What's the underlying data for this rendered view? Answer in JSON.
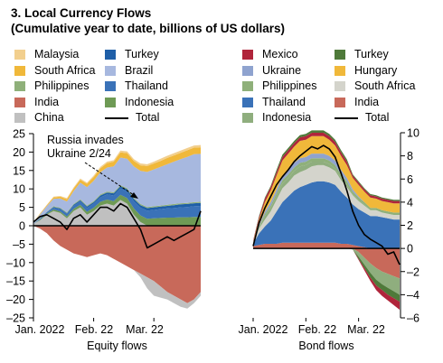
{
  "header": {
    "title": "3. Local Currency Flows",
    "subtitle": "(Cumulative year to date, billions of US dollars)"
  },
  "colors": {
    "malaysia": "#f2cf8e",
    "turkey_eq": "#1f5fa8",
    "south_africa": "#f0b83a",
    "brazil": "#a7b8df",
    "philippines": "#8fb07a",
    "thailand": "#3a72b8",
    "india": "#c8695a",
    "indonesia": "#6e9a55",
    "china": "#c0c0c0",
    "mexico": "#b0253b",
    "turkey_bond": "#4f7a3a",
    "ukraine": "#8fa3cf",
    "hungary": "#f0b83a",
    "bond_south_africa": "#d4d4cc",
    "bond_india": "#c8695a",
    "bond_indonesia": "#8fae7e",
    "total": "#000000"
  },
  "legends": {
    "equity": [
      {
        "label": "Malaysia",
        "color": "#f2cf8e"
      },
      {
        "label": "Turkey",
        "color": "#1f5fa8"
      },
      {
        "label": "South Africa",
        "color": "#f0b83a"
      },
      {
        "label": "Brazil",
        "color": "#a7b8df"
      },
      {
        "label": "Philippines",
        "color": "#8fb07a"
      },
      {
        "label": "Thailand",
        "color": "#3a72b8"
      },
      {
        "label": "India",
        "color": "#c8695a"
      },
      {
        "label": "Indonesia",
        "color": "#6e9a55"
      },
      {
        "label": "China",
        "color": "#c0c0c0"
      },
      {
        "label": "Total",
        "color": "#000000",
        "line": true
      }
    ],
    "bond": [
      {
        "label": "Mexico",
        "color": "#b0253b"
      },
      {
        "label": "Turkey",
        "color": "#4f7a3a"
      },
      {
        "label": "Ukraine",
        "color": "#8fa3cf"
      },
      {
        "label": "Hungary",
        "color": "#f0b83a"
      },
      {
        "label": "Philippines",
        "color": "#8fb07a"
      },
      {
        "label": "South Africa",
        "color": "#d4d4cc"
      },
      {
        "label": "Thailand",
        "color": "#3a72b8"
      },
      {
        "label": "India",
        "color": "#c8695a"
      },
      {
        "label": "Indonesia",
        "color": "#8fae7e"
      },
      {
        "label": "Total",
        "color": "#000000",
        "line": true
      }
    ]
  },
  "chart_data": [
    {
      "type": "area",
      "xlabel": "Equity flows",
      "ylim": [
        -25,
        25
      ],
      "yticks": [
        -25,
        -20,
        -15,
        -10,
        -5,
        0,
        5,
        10,
        15,
        20,
        25
      ],
      "xtick_labels": [
        "Jan. 2022",
        "Feb. 22",
        "Mar. 22"
      ],
      "annotation": [
        "Russia invades",
        "Ukraine 2/24"
      ],
      "x": [
        0,
        0.04,
        0.08,
        0.12,
        0.16,
        0.2,
        0.24,
        0.28,
        0.32,
        0.36,
        0.4,
        0.44,
        0.48,
        0.52,
        0.56,
        0.6,
        0.64,
        0.68,
        0.72,
        0.76,
        0.8,
        0.84,
        0.88,
        0.92,
        0.96,
        1.0
      ],
      "positive_series": [
        {
          "name": "China",
          "values": [
            0.5,
            1.5,
            3,
            4,
            3.5,
            2,
            4,
            5,
            3,
            4,
            5.5,
            6,
            5.5,
            7,
            6,
            3,
            1,
            0,
            0,
            0,
            0,
            0,
            0,
            0,
            0,
            0
          ]
        },
        {
          "name": "Indonesia",
          "values": [
            0,
            0.2,
            0.3,
            0.4,
            0.4,
            0.5,
            0.6,
            0.7,
            0.8,
            0.9,
            1.0,
            1.1,
            1.2,
            1.4,
            1.5,
            1.7,
            1.8,
            1.9,
            2.0,
            2.1,
            2.2,
            2.2,
            2.3,
            2.3,
            2.4,
            2.4
          ]
        },
        {
          "name": "Thailand",
          "values": [
            0,
            0.2,
            0.3,
            0.5,
            0.6,
            0.7,
            0.8,
            0.9,
            1.0,
            1.1,
            1.2,
            1.4,
            1.5,
            1.7,
            1.8,
            2.0,
            2.1,
            2.2,
            2.3,
            2.4,
            2.5,
            2.6,
            2.7,
            2.8,
            2.9,
            3.0
          ]
        },
        {
          "name": "Turkey",
          "values": [
            0,
            0.1,
            0.1,
            0.2,
            0.2,
            0.2,
            0.3,
            0.3,
            0.4,
            0.4,
            0.5,
            0.5,
            0.6,
            0.6,
            0.6,
            0.6,
            0.7,
            0.7,
            0.7,
            0.7,
            0.7,
            0.8,
            0.8,
            0.8,
            0.8,
            0.8
          ]
        },
        {
          "name": "Philippines",
          "values": [
            0,
            0.1,
            0.1,
            0.2,
            0.2,
            0.2,
            0.2,
            0.3,
            0.3,
            0.3,
            0.3,
            0.3,
            0.3,
            0.3,
            0.3,
            0.3,
            0.3,
            0.3,
            0.3,
            0.3,
            0.3,
            0.3,
            0.3,
            0.3,
            0.3,
            0.3
          ]
        },
        {
          "name": "Brazil",
          "values": [
            0.5,
            1,
            1.5,
            2,
            2.5,
            3,
            3.5,
            4.5,
            5,
            5.5,
            6,
            6.5,
            7,
            7.5,
            8,
            8.5,
            9,
            9.5,
            10,
            10.5,
            11,
            11.5,
            12,
            12.5,
            13,
            13
          ]
        },
        {
          "name": "South Africa",
          "values": [
            0,
            0.2,
            0.3,
            0.4,
            0.5,
            0.6,
            0.7,
            0.8,
            0.9,
            1.0,
            1.1,
            1.2,
            1.3,
            1.4,
            1.5,
            1.5,
            1.5,
            1.6,
            1.6,
            1.6,
            1.7,
            1.7,
            1.7,
            1.8,
            1.8,
            1.8
          ]
        },
        {
          "name": "Malaysia",
          "values": [
            0,
            0.1,
            0.1,
            0.2,
            0.2,
            0.3,
            0.3,
            0.3,
            0.3,
            0.4,
            0.4,
            0.4,
            0.4,
            0.5,
            0.5,
            0.5,
            0.5,
            0.5,
            0.5,
            0.6,
            0.6,
            0.6,
            0.6,
            0.6,
            0.6,
            0.6
          ]
        }
      ],
      "negative_series": [
        {
          "name": "India",
          "values": [
            0,
            -0.8,
            -2,
            -4,
            -5.5,
            -6.5,
            -7.5,
            -8,
            -8.5,
            -8,
            -7.5,
            -8,
            -9,
            -10,
            -11,
            -12,
            -13,
            -14,
            -15,
            -16.5,
            -18,
            -19,
            -20,
            -21,
            -20,
            -18
          ]
        },
        {
          "name": "China",
          "values": [
            0,
            0,
            0,
            0,
            0,
            0,
            0,
            0,
            0,
            0,
            0,
            0,
            0,
            0,
            0,
            0,
            -1,
            -3,
            -4,
            -3,
            -2,
            -2,
            -2,
            -1.5,
            -1,
            -1
          ]
        }
      ],
      "total": [
        1,
        2.5,
        3,
        2,
        1,
        -1,
        2,
        3,
        1,
        3,
        5,
        5,
        4,
        6,
        5,
        2,
        -1,
        -6,
        -5,
        -4,
        -3,
        -4,
        -3,
        -2,
        -1,
        4
      ]
    },
    {
      "type": "area",
      "xlabel": "Bond flows",
      "ylim": [
        -6,
        10
      ],
      "yticks": [
        -6,
        -4,
        -2,
        0,
        2,
        4,
        6,
        8,
        10
      ],
      "xtick_labels": [
        "Jan. 2022",
        "Feb. 22",
        "Mar. 22"
      ],
      "x": [
        0,
        0.04,
        0.08,
        0.12,
        0.16,
        0.2,
        0.24,
        0.28,
        0.32,
        0.36,
        0.4,
        0.44,
        0.48,
        0.52,
        0.56,
        0.6,
        0.64,
        0.68,
        0.72,
        0.76,
        0.8,
        0.84,
        0.88,
        0.92,
        0.96,
        1.0
      ],
      "positive_series": [
        {
          "name": "India",
          "values": [
            0.2,
            0.3,
            0.4,
            0.4,
            0.4,
            0.5,
            0.5,
            0.5,
            0.5,
            0.5,
            0.5,
            0.5,
            0.5,
            0.5,
            0.5,
            0.4,
            0.4,
            0.3,
            0.2,
            0.1,
            0,
            0,
            0,
            0,
            0,
            0
          ]
        },
        {
          "name": "Thailand",
          "values": [
            0.2,
            1,
            1.5,
            2,
            2.8,
            3.5,
            4,
            4.5,
            4.8,
            5,
            5.2,
            5.3,
            5.3,
            5.2,
            5,
            4.5,
            4,
            3.5,
            3.2,
            3,
            2.8,
            2.8,
            2.7,
            2.6,
            2.5,
            2.5
          ]
        },
        {
          "name": "South Africa",
          "values": [
            0.2,
            0.4,
            0.6,
            0.8,
            1,
            1.2,
            1.2,
            1.3,
            1.3,
            1.3,
            1.4,
            1.4,
            1.4,
            1.3,
            1.2,
            1.0,
            0.9,
            0.8,
            0.7,
            0.6,
            0.5,
            0.5,
            0.4,
            0.4,
            0.4,
            0.4
          ]
        },
        {
          "name": "Indonesia",
          "values": [
            0,
            0.1,
            0.3,
            0.3,
            0.3,
            0.4,
            0.4,
            0.4,
            0.5,
            0.4,
            0.4,
            0.3,
            0.3,
            0.3,
            0.2,
            0.2,
            0.2,
            0.1,
            0.1,
            0.1,
            0,
            0,
            0,
            0,
            0,
            0
          ]
        },
        {
          "name": "Philippines",
          "values": [
            0,
            0.1,
            0.2,
            0.2,
            0.3,
            0.3,
            0.3,
            0.3,
            0.3,
            0.3,
            0.3,
            0.3,
            0.3,
            0.3,
            0.3,
            0.3,
            0.3,
            0.2,
            0.2,
            0.2,
            0.2,
            0.2,
            0.2,
            0.2,
            0.2,
            0.2
          ]
        },
        {
          "name": "Ukraine",
          "values": [
            0,
            0.1,
            0.2,
            0.3,
            0.3,
            0.4,
            0.4,
            0.4,
            0.4,
            0.4,
            0.4,
            0.4,
            0.4,
            0.4,
            0.4,
            0.4,
            0.3,
            0.2,
            0.1,
            0,
            0,
            0,
            0,
            0,
            0,
            0
          ]
        },
        {
          "name": "Hungary",
          "values": [
            0,
            0.5,
            0.8,
            1,
            1.2,
            1.3,
            1.4,
            1.4,
            1.5,
            1.5,
            1.5,
            1.5,
            1.5,
            1.4,
            1.3,
            1.2,
            1.1,
            1.0,
            1.0,
            0.9,
            0.9,
            0.8,
            0.8,
            0.8,
            0.8,
            0.8
          ]
        },
        {
          "name": "Mexico",
          "values": [
            0.1,
            0.2,
            0.3,
            0.3,
            0.3,
            0.3,
            0.3,
            0.3,
            0.3,
            0.3,
            0.3,
            0.3,
            0.3,
            0.3,
            0.3,
            0.3,
            0.3,
            0.2,
            0.2,
            0.2,
            0.2,
            0.2,
            0.2,
            0.2,
            0.2,
            0.2
          ]
        },
        {
          "name": "Turkey",
          "values": [
            0,
            0.1,
            0.1,
            0.1,
            0.2,
            0.2,
            0.2,
            0.2,
            0.2,
            0.2,
            0.2,
            0.2,
            0.2,
            0.2,
            0.2,
            0.2,
            0.2,
            0.1,
            0.1,
            0.1,
            0.1,
            0.1,
            0.1,
            0.1,
            0.1,
            0.1
          ]
        }
      ],
      "negative_series": [
        {
          "name": "India",
          "values": [
            0,
            0,
            0,
            0,
            0,
            0,
            0,
            0,
            0,
            0,
            0,
            0,
            0,
            0,
            0,
            0,
            0,
            0,
            -0.3,
            -0.8,
            -1.3,
            -1.7,
            -2.0,
            -2.2,
            -2.4,
            -2.6
          ]
        },
        {
          "name": "Indonesia",
          "values": [
            0,
            0,
            0,
            0,
            0,
            0,
            0,
            0,
            0,
            0,
            0,
            0,
            0,
            0,
            0,
            0,
            0,
            -0.1,
            -0.4,
            -0.6,
            -0.8,
            -1.0,
            -1.1,
            -1.2,
            -1.3,
            -1.4
          ]
        },
        {
          "name": "Turkey",
          "values": [
            0,
            0,
            0,
            0,
            0,
            0,
            0,
            0,
            0,
            0,
            0,
            0,
            0,
            0,
            0,
            0,
            0,
            0,
            -0.2,
            -0.3,
            -0.4,
            -0.5,
            -0.5,
            -0.6,
            -0.6,
            -0.6
          ]
        },
        {
          "name": "Mexico",
          "values": [
            0,
            0,
            0,
            0,
            0,
            0,
            0,
            0,
            0,
            0,
            0,
            0,
            0,
            0,
            0,
            0,
            0,
            0,
            -0.1,
            -0.2,
            -0.3,
            -0.4,
            -0.5,
            -0.5,
            -0.6,
            -0.7
          ]
        }
      ],
      "total": [
        0.2,
        2.2,
        3.5,
        4.5,
        5.5,
        6.2,
        6.8,
        7.5,
        8,
        8.4,
        8.8,
        8.6,
        8.9,
        8.6,
        7.9,
        6.5,
        5,
        3.2,
        2,
        1.2,
        0.8,
        0.5,
        0.2,
        -0.5,
        -0.3,
        -1.4
      ]
    }
  ]
}
